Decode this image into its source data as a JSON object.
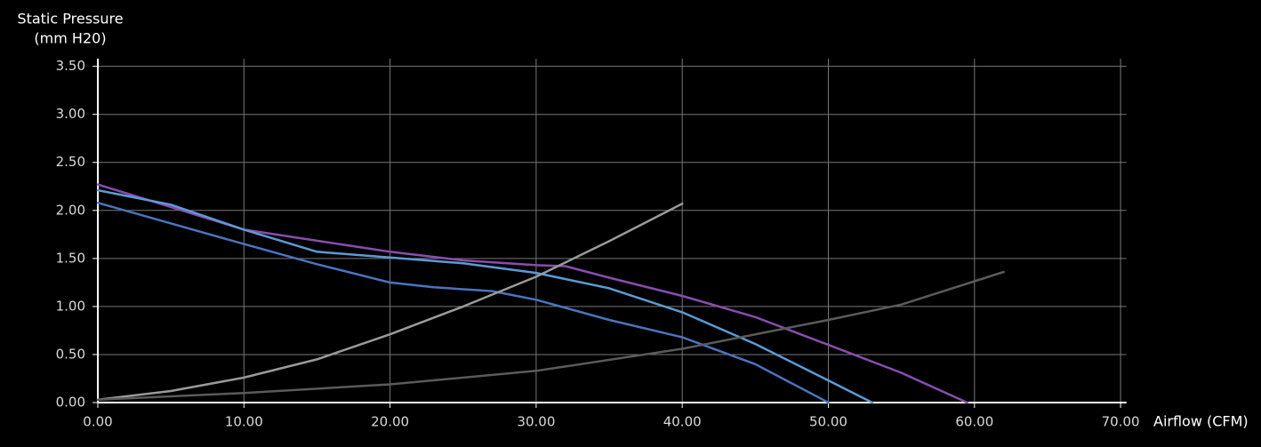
{
  "chart_data": {
    "type": "line",
    "ylabel": "Static Pressure",
    "ylabel_unit": "(mm H20)",
    "xlabel": "Airflow (CFM)",
    "xlim": [
      0,
      70.4
    ],
    "ylim": [
      0,
      3.58
    ],
    "grid": true,
    "xticks": [
      {
        "value": 0,
        "label": "0.00"
      },
      {
        "value": 10,
        "label": "10.00"
      },
      {
        "value": 20,
        "label": "20.00"
      },
      {
        "value": 30,
        "label": "30.00"
      },
      {
        "value": 40,
        "label": "40.00"
      },
      {
        "value": 50,
        "label": "50.00"
      },
      {
        "value": 60,
        "label": "60.00"
      },
      {
        "value": 70,
        "label": "70.00"
      }
    ],
    "yticks": [
      {
        "value": 0,
        "label": "0.00"
      },
      {
        "value": 0.5,
        "label": "0.50"
      },
      {
        "value": 1,
        "label": "1.00"
      },
      {
        "value": 1.5,
        "label": "1.50"
      },
      {
        "value": 2,
        "label": "2.00"
      },
      {
        "value": 2.5,
        "label": "2.50"
      },
      {
        "value": 3,
        "label": "3.00"
      },
      {
        "value": 3.5,
        "label": "3.50"
      }
    ],
    "series": [
      {
        "color": "#8a4cb0",
        "x": [
          0,
          10,
          20,
          25,
          30,
          32,
          35,
          40,
          45,
          50,
          55,
          59.5
        ],
        "values": [
          2.27,
          1.8,
          1.57,
          1.48,
          1.43,
          1.42,
          1.3,
          1.11,
          0.89,
          0.6,
          0.31,
          0
        ]
      },
      {
        "color": "#5b9bd5",
        "x": [
          0,
          5,
          10,
          15,
          20,
          25,
          30,
          35,
          40,
          45,
          50,
          53
        ],
        "values": [
          2.21,
          2.06,
          1.8,
          1.57,
          1.51,
          1.45,
          1.35,
          1.19,
          0.94,
          0.61,
          0.23,
          0
        ]
      },
      {
        "color": "#4a74c0",
        "x": [
          0,
          10,
          15,
          20,
          23,
          27,
          30,
          35,
          40,
          45,
          50
        ],
        "values": [
          2.08,
          1.65,
          1.44,
          1.25,
          1.2,
          1.16,
          1.07,
          0.86,
          0.68,
          0.4,
          0
        ]
      },
      {
        "color": "#9a9a9a",
        "x": [
          0,
          5,
          10,
          15,
          20,
          25,
          30,
          35,
          40
        ],
        "values": [
          0.03,
          0.12,
          0.26,
          0.45,
          0.71,
          1.0,
          1.31,
          1.68,
          2.07
        ]
      },
      {
        "color": "#5a5a5a",
        "x": [
          0,
          10,
          20,
          30,
          40,
          50,
          55,
          62
        ],
        "values": [
          0.03,
          0.1,
          0.19,
          0.33,
          0.56,
          0.86,
          1.02,
          1.36
        ]
      }
    ]
  }
}
